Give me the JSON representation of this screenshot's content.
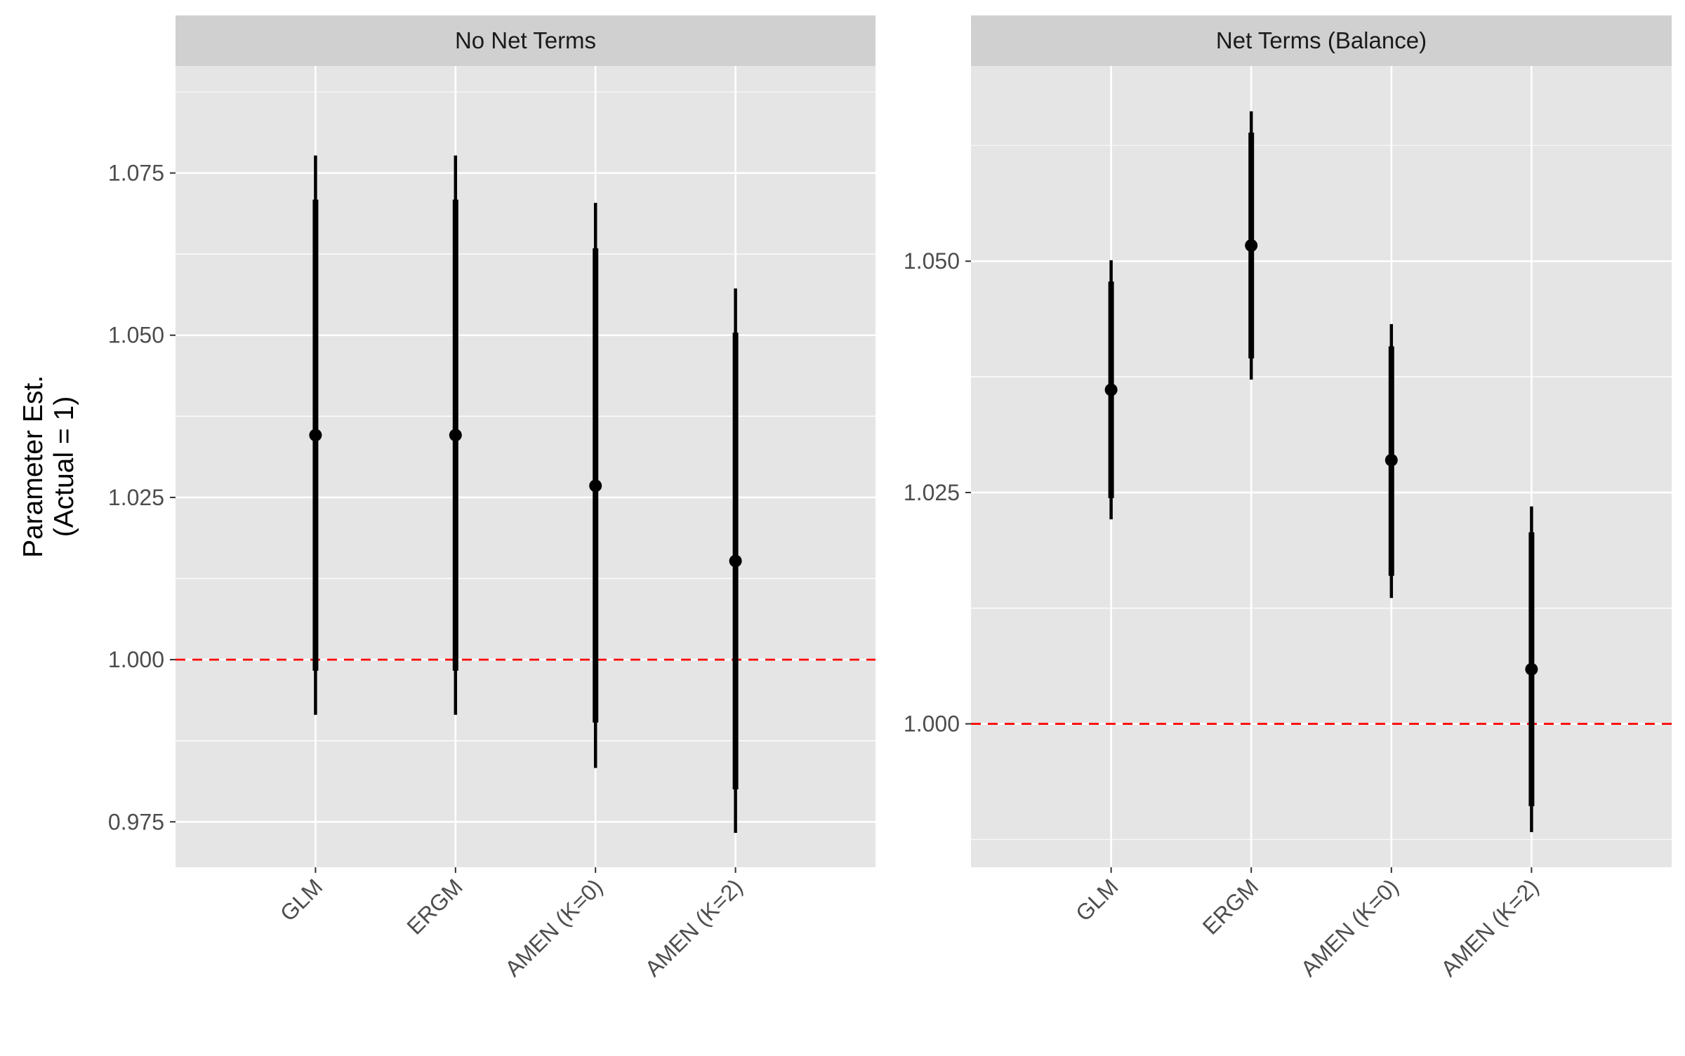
{
  "chart_data": {
    "type": "errorbar",
    "ylabel_lines": [
      "Parameter Est.",
      "(Actual = 1)"
    ],
    "reference_line": {
      "y": 1.0,
      "color": "#ff0000",
      "style": "dashed"
    },
    "colors": {
      "panel_bg": "#e5e5e5",
      "strip_bg": "#d0d0d0",
      "grid": "#ffffff",
      "marks": "#000000",
      "axis_text": "#4d4d4d",
      "strip_text": "#1a1a1a"
    },
    "facets": [
      {
        "title": "No Net Terms",
        "ylim": [
          0.968,
          1.0915
        ],
        "yticks": [
          0.975,
          1.0,
          1.025,
          1.05,
          1.075
        ],
        "ytick_labels": [
          "0.975",
          "1.000",
          "1.025",
          "1.050",
          "1.075"
        ],
        "categories": [
          "GLM",
          "ERGM",
          "AMEN (K=0)",
          "AMEN (K=2)"
        ],
        "estimates": [
          1.0346,
          1.0346,
          1.0268,
          1.0152
        ],
        "ci95": [
          [
            0.9915,
            1.0777
          ],
          [
            0.9915,
            1.0777
          ],
          [
            0.9833,
            1.0704
          ],
          [
            0.9733,
            1.0572
          ]
        ],
        "ci90": [
          [
            0.9983,
            1.0709
          ],
          [
            0.9983,
            1.0709
          ],
          [
            0.9903,
            1.0634
          ],
          [
            0.98,
            1.0504
          ]
        ]
      },
      {
        "title": "Net Terms (Balance)",
        "ylim": [
          0.9845,
          1.0711
        ],
        "yticks": [
          1.0,
          1.025,
          1.05
        ],
        "ytick_labels": [
          "1.000",
          "1.025",
          "1.050"
        ],
        "categories": [
          "GLM",
          "ERGM",
          "AMEN (K=0)",
          "AMEN (K=2)"
        ],
        "estimates": [
          1.0361,
          1.0517,
          1.0285,
          1.0059
        ],
        "ci95": [
          [
            1.0221,
            1.0501
          ],
          [
            1.0372,
            1.0662
          ],
          [
            1.0136,
            1.0432
          ],
          [
            0.9883,
            1.0235
          ]
        ],
        "ci90": [
          [
            1.0244,
            1.0478
          ],
          [
            1.0395,
            1.0639
          ],
          [
            1.016,
            1.0408
          ],
          [
            0.9911,
            1.0207
          ]
        ]
      }
    ]
  }
}
